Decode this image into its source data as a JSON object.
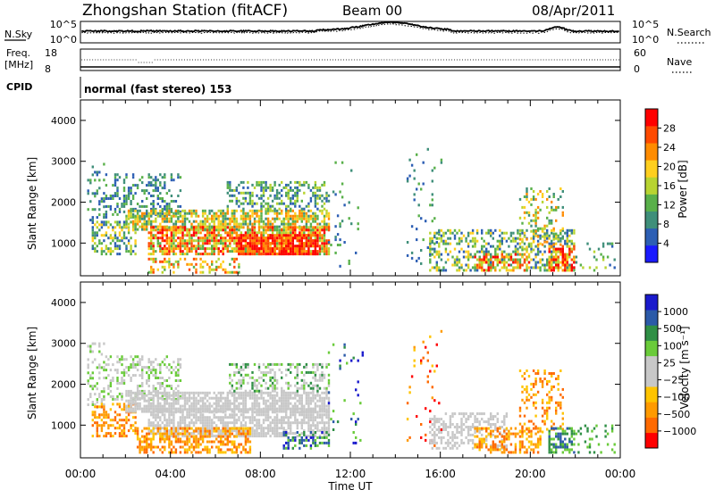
{
  "header": {
    "station": "Zhongshan Station (fitACF)",
    "beam": "Beam 00",
    "date": "08/Apr/2011"
  },
  "panels": {
    "nsky": {
      "label": "N.Sky",
      "ticks": [
        "10^5",
        "10^0"
      ]
    },
    "nsearch": {
      "label": "N.Search",
      "ticks": [
        "10^5",
        "10^0"
      ]
    },
    "freq": {
      "label_line1": "Freq.",
      "label_line2": "[MHz]",
      "ticks": [
        "18",
        "8"
      ]
    },
    "nave": {
      "label": "Nave",
      "ticks": [
        "60",
        "0"
      ]
    },
    "cpid": {
      "label": "CPID",
      "value": "normal (fast stereo) 153"
    }
  },
  "colors": {
    "power": [
      "#1a1aff",
      "#2d5fb4",
      "#3f8f7a",
      "#59b04a",
      "#b8d431",
      "#ffcf1f",
      "#ff8c00",
      "#ff4a00",
      "#ff0000"
    ],
    "velocity": [
      "#ff0000",
      "#ff6a00",
      "#ff9a00",
      "#ffc400",
      "#c8c8c8",
      "#c8c8c8",
      "#6acb3a",
      "#2f8f45",
      "#2b5aa8",
      "#1a1acc"
    ]
  },
  "chart_data": [
    {
      "type": "heatmap",
      "name": "power",
      "xlabel": "",
      "ylabel": "Slant Range [km]",
      "y_ticks": [
        "1000",
        "2000",
        "3000",
        "4000"
      ],
      "y_values": [
        1000,
        2000,
        3000,
        4000
      ],
      "ylim": [
        200,
        4500
      ],
      "xlim": [
        0,
        24
      ],
      "colorbar": {
        "label": "Power [dB]",
        "ticks": [
          "4",
          "8",
          "12",
          "16",
          "20",
          "24",
          "28"
        ],
        "range": [
          0,
          30
        ]
      },
      "blobs": [
        {
          "t0": 0.3,
          "t1": 1.0,
          "r0": 1400,
          "r1": 3000,
          "dens": 0.25,
          "lvl": [
            1,
            3
          ]
        },
        {
          "t0": 1.0,
          "t1": 4.5,
          "r0": 1600,
          "r1": 2700,
          "dens": 0.35,
          "lvl": [
            1,
            3
          ]
        },
        {
          "t0": 0.5,
          "t1": 2.5,
          "r0": 700,
          "r1": 1500,
          "dens": 0.45,
          "lvl": [
            1,
            5
          ]
        },
        {
          "t0": 2.0,
          "t1": 11.0,
          "r0": 1300,
          "r1": 1800,
          "dens": 0.7,
          "lvl": [
            2,
            6
          ]
        },
        {
          "t0": 3.0,
          "t1": 11.0,
          "r0": 700,
          "r1": 1400,
          "dens": 0.75,
          "lvl": [
            3,
            8
          ]
        },
        {
          "t0": 7.0,
          "t1": 10.5,
          "r0": 700,
          "r1": 1200,
          "dens": 0.8,
          "lvl": [
            6,
            9
          ]
        },
        {
          "t0": 3.0,
          "t1": 7.0,
          "r0": 250,
          "r1": 600,
          "dens": 0.35,
          "lvl": [
            3,
            7
          ]
        },
        {
          "t0": 6.5,
          "t1": 11.0,
          "r0": 1800,
          "r1": 2500,
          "dens": 0.4,
          "lvl": [
            1,
            4
          ]
        },
        {
          "t0": 11.0,
          "t1": 12.5,
          "r0": 400,
          "r1": 3000,
          "dens": 0.05,
          "lvl": [
            1,
            3
          ]
        },
        {
          "t0": 14.5,
          "t1": 16.0,
          "r0": 400,
          "r1": 3300,
          "dens": 0.06,
          "lvl": [
            1,
            3
          ]
        },
        {
          "t0": 15.5,
          "t1": 22.0,
          "r0": 300,
          "r1": 1300,
          "dens": 0.45,
          "lvl": [
            1,
            5
          ]
        },
        {
          "t0": 17.5,
          "t1": 20.0,
          "r0": 300,
          "r1": 700,
          "dens": 0.55,
          "lvl": [
            3,
            8
          ]
        },
        {
          "t0": 19.5,
          "t1": 21.5,
          "r0": 800,
          "r1": 2300,
          "dens": 0.25,
          "lvl": [
            2,
            6
          ]
        },
        {
          "t0": 20.8,
          "t1": 22.0,
          "r0": 300,
          "r1": 900,
          "dens": 0.6,
          "lvl": [
            4,
            9
          ]
        },
        {
          "t0": 22.0,
          "t1": 23.8,
          "r0": 300,
          "r1": 1000,
          "dens": 0.15,
          "lvl": [
            1,
            4
          ]
        }
      ]
    },
    {
      "type": "heatmap",
      "name": "velocity",
      "xlabel": "Time UT",
      "ylabel": "Slant Range [km]",
      "x_ticks": [
        "00:00",
        "04:00",
        "08:00",
        "12:00",
        "16:00",
        "20:00",
        "00:00"
      ],
      "x_values": [
        0,
        4,
        8,
        12,
        16,
        20,
        24
      ],
      "y_ticks": [
        "1000",
        "2000",
        "3000",
        "4000"
      ],
      "y_values": [
        1000,
        2000,
        3000,
        4000
      ],
      "ylim": [
        200,
        4500
      ],
      "xlim": [
        0,
        24
      ],
      "colorbar": {
        "label": "Velocity [m s⁻¹]",
        "ticks": [
          "1000",
          "500",
          "100",
          "25",
          "−25",
          "−100",
          "−500",
          "−1000"
        ],
        "range": [
          -1000,
          1000
        ]
      },
      "blobs": [
        {
          "t0": 0.3,
          "t1": 1.0,
          "r0": 1400,
          "r1": 3000,
          "dens": 0.25,
          "lvl": [
            4,
            6
          ]
        },
        {
          "t0": 1.0,
          "t1": 4.5,
          "r0": 1600,
          "r1": 2700,
          "dens": 0.35,
          "lvl": [
            4,
            6
          ]
        },
        {
          "t0": 0.5,
          "t1": 2.5,
          "r0": 700,
          "r1": 1500,
          "dens": 0.45,
          "lvl": [
            1,
            3
          ]
        },
        {
          "t0": 2.0,
          "t1": 11.0,
          "r0": 1300,
          "r1": 1800,
          "dens": 0.75,
          "lvl": [
            4,
            5
          ]
        },
        {
          "t0": 3.0,
          "t1": 11.0,
          "r0": 700,
          "r1": 1400,
          "dens": 0.7,
          "lvl": [
            4,
            5
          ]
        },
        {
          "t0": 2.5,
          "t1": 7.5,
          "r0": 300,
          "r1": 900,
          "dens": 0.55,
          "lvl": [
            1,
            3
          ]
        },
        {
          "t0": 6.5,
          "t1": 11.0,
          "r0": 1800,
          "r1": 2500,
          "dens": 0.4,
          "lvl": [
            4,
            7
          ]
        },
        {
          "t0": 9.0,
          "t1": 11.0,
          "r0": 400,
          "r1": 800,
          "dens": 0.35,
          "lvl": [
            6,
            9
          ]
        },
        {
          "t0": 11.0,
          "t1": 12.5,
          "r0": 400,
          "r1": 3000,
          "dens": 0.05,
          "lvl": [
            6,
            9
          ]
        },
        {
          "t0": 14.5,
          "t1": 16.0,
          "r0": 400,
          "r1": 3300,
          "dens": 0.06,
          "lvl": [
            0,
            3
          ]
        },
        {
          "t0": 15.5,
          "t1": 19.0,
          "r0": 400,
          "r1": 1300,
          "dens": 0.45,
          "lvl": [
            4,
            5
          ]
        },
        {
          "t0": 17.5,
          "t1": 20.5,
          "r0": 300,
          "r1": 900,
          "dens": 0.5,
          "lvl": [
            1,
            3
          ]
        },
        {
          "t0": 19.5,
          "t1": 21.5,
          "r0": 800,
          "r1": 2300,
          "dens": 0.25,
          "lvl": [
            1,
            3
          ]
        },
        {
          "t0": 20.8,
          "t1": 22.0,
          "r0": 300,
          "r1": 900,
          "dens": 0.55,
          "lvl": [
            6,
            8
          ]
        },
        {
          "t0": 22.0,
          "t1": 23.8,
          "r0": 300,
          "r1": 1000,
          "dens": 0.15,
          "lvl": [
            6,
            7
          ]
        }
      ]
    }
  ]
}
